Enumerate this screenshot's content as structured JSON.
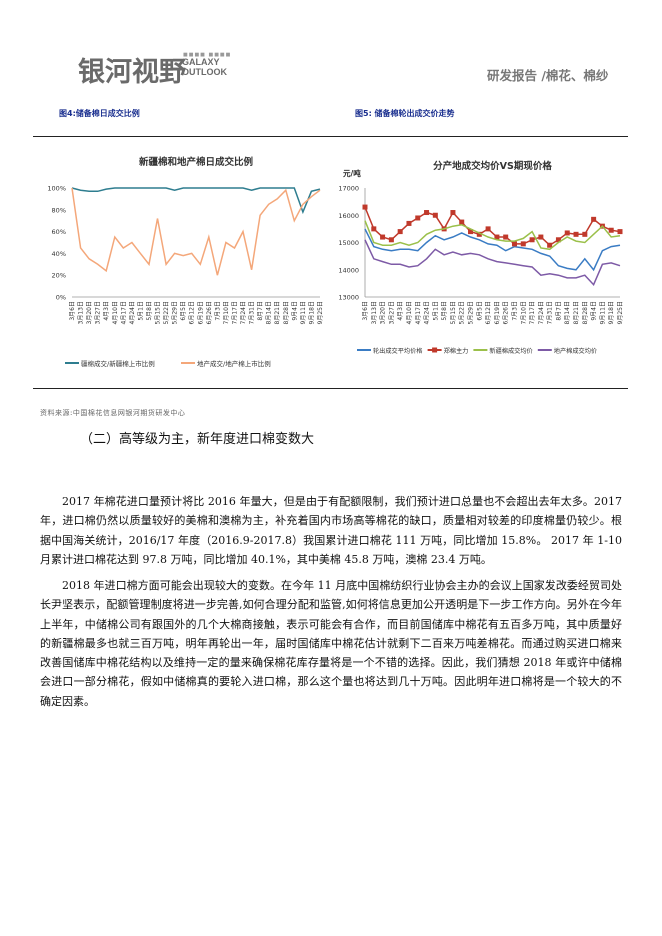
{
  "header": {
    "logo_cn": "银河视野",
    "logo_en_line1": "GALAXY",
    "logo_en_line2": "OUTLOOK",
    "report_title": "研发报告 /棉花、棉纱"
  },
  "figures": {
    "fig4_caption": "图4:储备棉日成交比例",
    "fig5_caption": "图5: 储备棉轮出成交价走势"
  },
  "chart_data": [
    {
      "type": "line",
      "title": "新疆棉和地产棉日成交比例",
      "xlabel": "",
      "ylabel": "",
      "ylim": [
        0,
        100
      ],
      "yticks": [
        "0%",
        "20%",
        "40%",
        "60%",
        "80%",
        "100%"
      ],
      "grid": false,
      "legend": "bottom",
      "categories": [
        "3月6日",
        "3月13日",
        "3月20日",
        "3月27日",
        "4月3日",
        "4月10日",
        "4月17日",
        "4月24日",
        "5月1日",
        "5月8日",
        "5月15日",
        "5月22日",
        "5月29日",
        "6月5日",
        "6月12日",
        "6月19日",
        "6月26日",
        "7月3日",
        "7月10日",
        "7月17日",
        "7月24日",
        "7月31日",
        "8月7日",
        "8月14日",
        "8月21日",
        "8月28日",
        "9月4日",
        "9月11日",
        "9月18日",
        "9月25日"
      ],
      "series": [
        {
          "name": "疆棉成交/新疆棉上市比例",
          "color": "#2e7d8f",
          "values": [
            100,
            98,
            97,
            97,
            99,
            100,
            100,
            100,
            100,
            100,
            100,
            100,
            98,
            100,
            100,
            100,
            100,
            100,
            100,
            100,
            100,
            98,
            100,
            100,
            100,
            100,
            100,
            78,
            97,
            99
          ]
        },
        {
          "name": "地产成交/地产棉上市比例",
          "color": "#f4a77a",
          "values": [
            100,
            45,
            35,
            30,
            24,
            55,
            45,
            50,
            40,
            30,
            72,
            30,
            40,
            38,
            40,
            30,
            55,
            20,
            50,
            45,
            60,
            25,
            75,
            85,
            90,
            98,
            70,
            85,
            92,
            98
          ]
        }
      ]
    },
    {
      "type": "line",
      "title": "分产地成交均价VS期现价格",
      "xlabel": "",
      "ylabel": "元/吨",
      "ylim": [
        13000,
        17000
      ],
      "yticks": [
        "13000",
        "14000",
        "15000",
        "16000",
        "17000"
      ],
      "grid": false,
      "legend": "bottom",
      "categories": [
        "3月6日",
        "3月13日",
        "3月20日",
        "3月27日",
        "4月3日",
        "4月10日",
        "4月17日",
        "4月24日",
        "5月1日",
        "5月8日",
        "5月15日",
        "5月22日",
        "5月29日",
        "6月5日",
        "6月12日",
        "6月19日",
        "6月26日",
        "7月3日",
        "7月10日",
        "7月17日",
        "7月24日",
        "7月31日",
        "8月7日",
        "8月14日",
        "8月21日",
        "8月28日",
        "9月4日",
        "9月11日",
        "9月18日",
        "9月25日"
      ],
      "series": [
        {
          "name": "轮出成交平均价格",
          "color": "#3a7cc4",
          "marker": "none",
          "values": [
            15500,
            14850,
            14750,
            14700,
            14750,
            14750,
            14700,
            15000,
            15250,
            15100,
            15200,
            15350,
            15200,
            15100,
            14950,
            14900,
            14700,
            14850,
            14800,
            14750,
            14600,
            14500,
            14150,
            14050,
            14000,
            14400,
            14000,
            14700,
            14850,
            14900
          ]
        },
        {
          "name": "郑棉主力",
          "color": "#c0392b",
          "marker": "square",
          "values": [
            16300,
            15500,
            15200,
            15100,
            15400,
            15700,
            15900,
            16100,
            16000,
            15500,
            16100,
            15750,
            15400,
            15300,
            15500,
            15200,
            15200,
            14950,
            14950,
            15100,
            15200,
            14900,
            15100,
            15350,
            15300,
            15300,
            15850,
            15600,
            15450,
            15400
          ]
        },
        {
          "name": "新疆棉成交均价",
          "color": "#9bc04a",
          "marker": "none",
          "values": [
            15800,
            15000,
            14900,
            14900,
            15000,
            14900,
            15000,
            15300,
            15450,
            15500,
            15600,
            15650,
            15500,
            15350,
            15200,
            15100,
            15050,
            15050,
            15150,
            15400,
            14800,
            14750,
            15000,
            15200,
            15050,
            15000,
            15300,
            15600,
            15200,
            15250
          ]
        },
        {
          "name": "地产棉成交均价",
          "color": "#7d5aa6",
          "marker": "none",
          "values": [
            15100,
            14400,
            14300,
            14200,
            14200,
            14100,
            14150,
            14400,
            14750,
            14550,
            14650,
            14550,
            14600,
            14550,
            14400,
            14300,
            14250,
            14200,
            14150,
            14100,
            13800,
            13850,
            13800,
            13700,
            13700,
            13800,
            13450,
            14200,
            14250,
            14150
          ]
        }
      ]
    }
  ],
  "source": "资料来源:中国棉花信息网银河期货研发中心",
  "section": {
    "heading": "（二）高等级为主，新年度进口棉变数大",
    "paragraphs": [
      "2017 年棉花进口量预计将比 2016 年量大，但是由于有配额限制，我们预计进口总量也不会超出去年太多。2017 年，进口棉仍然以质量较好的美棉和澳棉为主，补充着国内市场高等棉花的缺口，质量相对较差的印度棉量仍较少。根据中国海关统计，2016/17 年度（2016.9-2017.8）我国累计进口棉花 111 万吨，同比增加 15.8%。 2017 年 1-10 月累计进口棉花达到 97.8 万吨，同比增加 40.1%，其中美棉 45.8 万吨，澳棉 23.4 万吨。",
      "2018 年进口棉方面可能会出现较大的变数。在今年 11 月底中国棉纺织行业协会主办的会议上国家发改委经贸司处长尹坚表示，配额管理制度将进一步完善,如何合理分配和监管,如何将信息更加公开透明是下一步工作方向。另外在今年上半年，中储棉公司有跟国外的几个大棉商接触，表示可能会有合作，而目前国储库中棉花有五百多万吨，其中质量好的新疆棉最多也就三百万吨，明年再轮出一年，届时国储库中棉花估计就剩下二百来万吨差棉花。而通过购买进口棉来改善国储库中棉花结构以及维持一定的量来确保棉花库存量将是一个不错的选择。因此，我们猜想 2018 年或许中储棉会进口一部分棉花，假如中储棉真的要轮入进口棉，那么这个量也将达到几十万吨。因此明年进口棉将是一个较大的不确定因素。"
    ]
  }
}
